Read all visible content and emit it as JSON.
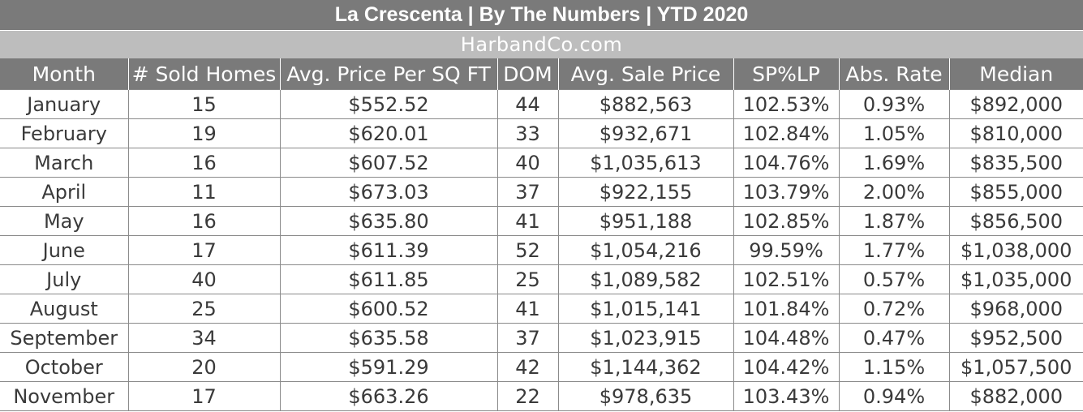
{
  "title": "La Crescenta  |  By The Numbers  |  YTD 2020",
  "subtitle": "HarbandCo.com",
  "columns": [
    "Month",
    "# Sold Homes",
    "Avg. Price Per SQ FT",
    "DOM",
    "Avg. Sale Price",
    "SP%LP",
    "Abs. Rate",
    "Median"
  ],
  "rows": [
    [
      "January",
      "15",
      "$552.52",
      "44",
      "$882,563",
      "102.53%",
      "0.93%",
      "$892,000"
    ],
    [
      "February",
      "19",
      "$620.01",
      "33",
      "$932,671",
      "102.84%",
      "1.05%",
      "$810,000"
    ],
    [
      "March",
      "16",
      "$607.52",
      "40",
      "$1,035,613",
      "104.76%",
      "1.69%",
      "$835,500"
    ],
    [
      "April",
      "11",
      "$673.03",
      "37",
      "$922,155",
      "103.79%",
      "2.00%",
      "$855,000"
    ],
    [
      "May",
      "16",
      "$635.80",
      "41",
      "$951,188",
      "102.85%",
      "1.87%",
      "$856,500"
    ],
    [
      "June",
      "17",
      "$611.39",
      "52",
      "$1,054,216",
      "99.59%",
      "1.77%",
      "$1,038,000"
    ],
    [
      "July",
      "40",
      "$611.85",
      "25",
      "$1,089,582",
      "102.51%",
      "0.57%",
      "$1,035,000"
    ],
    [
      "August",
      "25",
      "$600.52",
      "41",
      "$1,015,141",
      "101.84%",
      "0.72%",
      "$968,000"
    ],
    [
      "September",
      "34",
      "$635.58",
      "37",
      "$1,023,915",
      "104.48%",
      "0.47%",
      "$952,500"
    ],
    [
      "October",
      "20",
      "$591.29",
      "42",
      "$1,144,362",
      "104.42%",
      "1.15%",
      "$1,057,500"
    ],
    [
      "November",
      "17",
      "$663.26",
      "22",
      "$978,635",
      "103.43%",
      "0.94%",
      "$882,000"
    ]
  ],
  "colors": {
    "header_bg": "#7a7a7a",
    "subtitle_bg": "#bdbdbd",
    "header_text": "#ffffff",
    "cell_text": "#3a3a3a",
    "grid_line": "#8a8a8a"
  }
}
